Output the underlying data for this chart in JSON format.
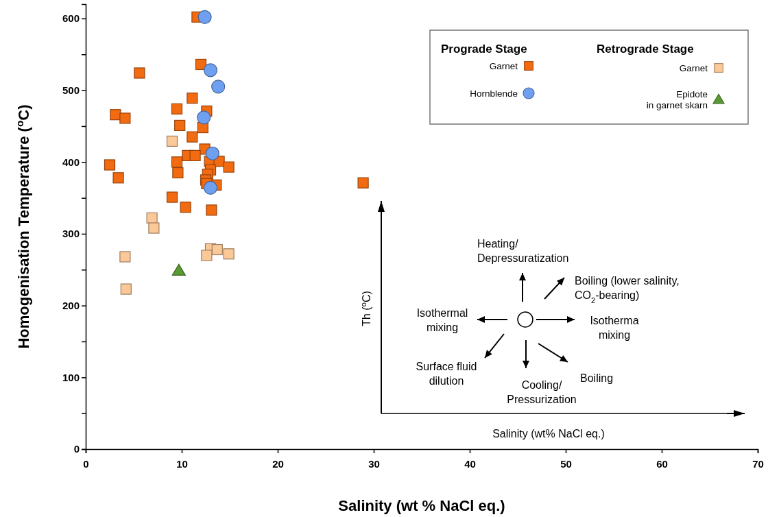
{
  "chart_data": {
    "type": "scatter",
    "xlabel": "Salinity (wt % NaCl eq.)",
    "ylabel": "Homogenisation Temperature ($^{o}$C)",
    "xlim": [
      0,
      70
    ],
    "xticks": [
      0,
      10,
      20,
      30,
      40,
      50,
      60,
      70
    ],
    "ylim": [
      0,
      620
    ],
    "yticks": [
      0,
      {
        "value": 50,
        "label": null
      },
      100,
      {
        "value": 150,
        "label": null
      },
      200,
      {
        "value": 250,
        "label": null
      },
      300,
      {
        "value": 350,
        "label": null
      },
      400,
      {
        "value": 450,
        "label": null
      },
      500,
      {
        "value": 550,
        "label": null
      },
      600
    ],
    "legend": "top right",
    "grid": false,
    "series": [
      {
        "name": "Garnet",
        "color": "#f26b11",
        "marker": "square",
        "x": [
          11.6,
          12.0,
          5.6,
          11.1,
          9.5,
          3.1,
          4.1,
          12.6,
          9.8,
          12.2,
          11.1,
          12.4,
          10.6,
          11.4,
          9.5,
          12.9,
          13.9,
          2.5,
          14.9,
          13.0,
          9.6,
          12.7,
          3.4,
          12.5,
          13.6,
          12.6,
          9.0,
          10.4,
          13.1,
          28.9
        ],
        "values": [
          602,
          536,
          524,
          489,
          474,
          466,
          461,
          471,
          451,
          448,
          435,
          418,
          409,
          409,
          400,
          401,
          401,
          396,
          393,
          389,
          385,
          383,
          378,
          375,
          368,
          370,
          351,
          337,
          333,
          371
        ]
      },
      {
        "name": "Hornblende",
        "color": "#6fa0f0",
        "marker": "circle",
        "x": [
          12.4,
          13.0,
          13.8,
          12.3,
          13.2,
          13.0
        ],
        "values": [
          602,
          528,
          505,
          462,
          412,
          364
        ]
      },
      {
        "name": "Garnet",
        "color": "#fbc898",
        "marker": "square",
        "x": [
          9.0,
          6.9,
          7.1,
          4.1,
          13.0,
          13.7,
          12.6,
          14.9,
          4.2
        ],
        "values": [
          429,
          322,
          308,
          268,
          279,
          278,
          270,
          272,
          223
        ]
      },
      {
        "name": "Epidote\nin garnet skarn",
        "color": "#5a9a32",
        "marker": "triangle",
        "x": [
          9.7
        ],
        "values": [
          249
        ]
      }
    ],
    "annotations": [
      "Prograde Stage",
      "Retrograde Stage",
      "Th ($^{o}$C)",
      "Salinity (wt% NaCl eq.)",
      "Heating/\nDepressuratization",
      "Boiling (lower salinity,\nCO$_{2}$-bearing)",
      "Isothermal\nmixing",
      "Isotherma\nmixing",
      "Surface fluid\ndilution",
      "Cooling/\nPressurization",
      "Boiling"
    ]
  }
}
